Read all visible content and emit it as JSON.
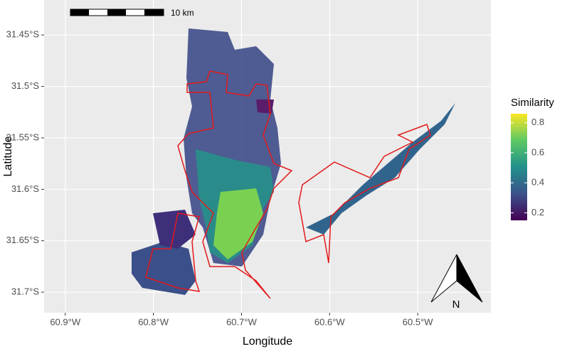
{
  "map": {
    "x_label": "Longitude",
    "y_label": "Latitude",
    "xlim": [
      -60.924,
      -60.417
    ],
    "ylim": [
      -31.72,
      -31.416
    ],
    "xticks": [
      {
        "value": -60.9,
        "label": "60.9°W"
      },
      {
        "value": -60.8,
        "label": "60.8°W"
      },
      {
        "value": -60.7,
        "label": "60.7°W"
      },
      {
        "value": -60.6,
        "label": "60.6°W"
      },
      {
        "value": -60.5,
        "label": "60.5°W"
      }
    ],
    "yticks": [
      {
        "value": -31.45,
        "label": "31.45°S"
      },
      {
        "value": -31.5,
        "label": "31.5°S"
      },
      {
        "value": -31.55,
        "label": "31.55°S"
      },
      {
        "value": -31.6,
        "label": "31.6°S"
      },
      {
        "value": -31.65,
        "label": "31.65°S"
      },
      {
        "value": -31.7,
        "label": "31.7°S"
      }
    ],
    "legend": {
      "title": "Similarity",
      "range": [
        0.15,
        0.86
      ],
      "ticks": [
        0.2,
        0.4,
        0.6,
        0.8
      ]
    },
    "scale_bar": {
      "label": "10 km"
    },
    "north_arrow": {
      "label": "N"
    }
  }
}
